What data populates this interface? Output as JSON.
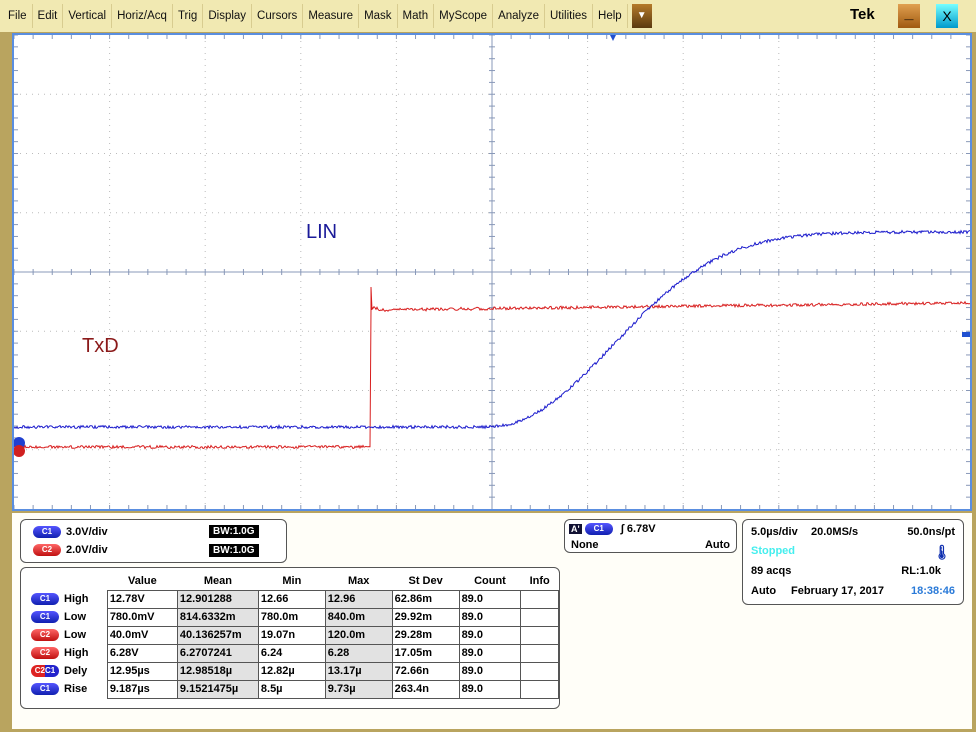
{
  "menu": [
    "File",
    "Edit",
    "Vertical",
    "Horiz/Acq",
    "Trig",
    "Display",
    "Cursors",
    "Measure",
    "Mask",
    "Math",
    "MyScope",
    "Analyze",
    "Utilities",
    "Help"
  ],
  "brand": "Tek",
  "minimize": "_",
  "close": "X",
  "dropdown": "▼",
  "traces": {
    "lin_label": "LIN",
    "txd_label": "TxD",
    "ch1_marker": "1",
    "ch2_marker": "2",
    "colors": {
      "c1": "#1a1acc",
      "c2": "#d81e1e"
    }
  },
  "channels": [
    {
      "id": "C1",
      "scale": "3.0V/div",
      "bw": "1.0G"
    },
    {
      "id": "C2",
      "scale": "2.0V/div",
      "bw": "1.0G"
    }
  ],
  "trigger": {
    "mode_badge": "A'",
    "source": "C1",
    "slope": "rising",
    "level": "6.78V",
    "coupling": "None",
    "mode": "Auto"
  },
  "acq": {
    "timebase": "5.0µs/div",
    "rate": "20.0MS/s",
    "resolution": "50.0ns/pt",
    "state": "Stopped",
    "acqs": "89 acqs",
    "rl": "RL:1.0k",
    "mode": "Auto",
    "date": "February 17, 2017",
    "time": "18:38:46"
  },
  "measurements": {
    "headers": [
      "Value",
      "Mean",
      "Min",
      "Max",
      "St Dev",
      "Count",
      "Info"
    ],
    "rows": [
      {
        "src": "C1",
        "type": "High",
        "vals": [
          "12.78V",
          "12.901288",
          "12.66",
          "12.96",
          "62.86m",
          "89.0",
          ""
        ]
      },
      {
        "src": "C1",
        "type": "Low",
        "vals": [
          "780.0mV",
          "814.6332m",
          "780.0m",
          "840.0m",
          "29.92m",
          "89.0",
          ""
        ]
      },
      {
        "src": "C2",
        "type": "Low",
        "vals": [
          "40.0mV",
          "40.136257m",
          "19.07n",
          "120.0m",
          "29.28m",
          "89.0",
          ""
        ]
      },
      {
        "src": "C2",
        "type": "High",
        "vals": [
          "6.28V",
          "6.2707241",
          "6.24",
          "6.28",
          "17.05m",
          "89.0",
          ""
        ]
      },
      {
        "src": "C2C1",
        "type": "Dely",
        "vals": [
          "12.95µs",
          "12.98518µ",
          "12.82µ",
          "13.17µ",
          "72.66n",
          "89.0",
          ""
        ]
      },
      {
        "src": "C1",
        "type": "Rise",
        "vals": [
          "9.187µs",
          "9.1521475µ",
          "8.5µ",
          "9.73µ",
          "263.4n",
          "89.0",
          ""
        ]
      }
    ]
  }
}
